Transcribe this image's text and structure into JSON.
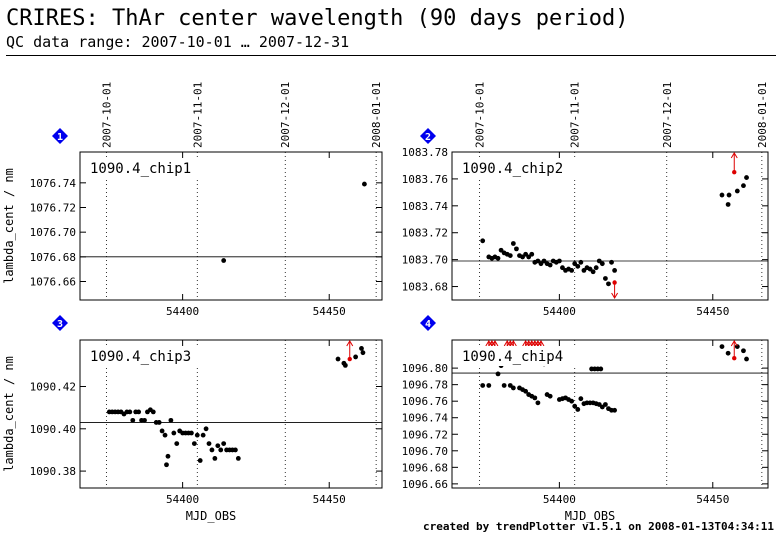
{
  "header": {
    "title": "CRIRES: ThAr center wavelength (90 days period)",
    "subtitle": "QC data range: 2007-10-01 … 2007-12-31"
  },
  "footer": "created by trendPlotter v1.5.1 on 2008-01-13T04:34:11",
  "colors": {
    "points": "#000000",
    "outlier": "#dd0000",
    "badge": "#0000ee",
    "reference_line": "#000000"
  },
  "chart_data": [
    {
      "type": "scatter",
      "badge": "1",
      "label": "1090.4_chip1",
      "ylabel": "lambda_cent / nm",
      "xlabel": "",
      "xlim": [
        54365,
        54468
      ],
      "ylim": [
        1076.645,
        1076.765
      ],
      "ytick_values": [
        1076.66,
        1076.68,
        1076.7,
        1076.72,
        1076.74
      ],
      "ytick_labels": [
        "1076.66",
        "1076.68",
        "1076.70",
        "1076.72",
        "1076.74"
      ],
      "xtick_values": [
        54400,
        54450
      ],
      "xtick_labels": [
        "54400",
        "54450"
      ],
      "date_values": [
        54374,
        54405,
        54435,
        54466
      ],
      "date_labels": [
        "2007-10-01",
        "2007-11-01",
        "2007-12-01",
        "2008-01-01"
      ],
      "reference": 1076.68,
      "points": [
        [
          54414,
          1076.677
        ],
        [
          54462,
          1076.739
        ]
      ],
      "outliers_up": [],
      "outliers_down": []
    },
    {
      "type": "scatter",
      "badge": "2",
      "label": "1090.4_chip2",
      "ylabel": "",
      "xlabel": "",
      "xlim": [
        54365,
        54468
      ],
      "ylim": [
        1083.67,
        1083.78
      ],
      "ytick_values": [
        1083.68,
        1083.7,
        1083.72,
        1083.74,
        1083.76,
        1083.78
      ],
      "ytick_labels": [
        "1083.68",
        "1083.70",
        "1083.72",
        "1083.74",
        "1083.76",
        "1083.78"
      ],
      "xtick_values": [
        54400,
        54450
      ],
      "xtick_labels": [
        "54400",
        "54450"
      ],
      "date_values": [
        54374,
        54405,
        54435,
        54466
      ],
      "date_labels": [
        "2007-10-01",
        "2007-11-01",
        "2007-12-01",
        "2008-01-01"
      ],
      "reference": 1083.699,
      "points": [
        [
          54375,
          1083.714
        ],
        [
          54377,
          1083.702
        ],
        [
          54378,
          1083.701
        ],
        [
          54379,
          1083.702
        ],
        [
          54380,
          1083.701
        ],
        [
          54381,
          1083.707
        ],
        [
          54382,
          1083.705
        ],
        [
          54383,
          1083.704
        ],
        [
          54384,
          1083.703
        ],
        [
          54385,
          1083.712
        ],
        [
          54386,
          1083.708
        ],
        [
          54387,
          1083.703
        ],
        [
          54388,
          1083.702
        ],
        [
          54389,
          1083.704
        ],
        [
          54390,
          1083.702
        ],
        [
          54391,
          1083.704
        ],
        [
          54392,
          1083.698
        ],
        [
          54393,
          1083.699
        ],
        [
          54394,
          1083.697
        ],
        [
          54395,
          1083.699
        ],
        [
          54396,
          1083.697
        ],
        [
          54397,
          1083.696
        ],
        [
          54398,
          1083.699
        ],
        [
          54399,
          1083.698
        ],
        [
          54400,
          1083.699
        ],
        [
          54401,
          1083.694
        ],
        [
          54402,
          1083.692
        ],
        [
          54403,
          1083.693
        ],
        [
          54404,
          1083.692
        ],
        [
          54405,
          1083.697
        ],
        [
          54406,
          1083.695
        ],
        [
          54407,
          1083.698
        ],
        [
          54408,
          1083.692
        ],
        [
          54409,
          1083.694
        ],
        [
          54410,
          1083.693
        ],
        [
          54411,
          1083.691
        ],
        [
          54412,
          1083.694
        ],
        [
          54413,
          1083.699
        ],
        [
          54414,
          1083.697
        ],
        [
          54415,
          1083.686
        ],
        [
          54416,
          1083.682
        ],
        [
          54417,
          1083.698
        ],
        [
          54418,
          1083.692
        ],
        [
          54453,
          1083.748
        ],
        [
          54455,
          1083.741
        ],
        [
          54455.3,
          1083.748
        ],
        [
          54458,
          1083.751
        ],
        [
          54460,
          1083.755
        ],
        [
          54461,
          1083.761
        ]
      ],
      "outliers_up": [
        [
          54457,
          1083.765
        ]
      ],
      "outliers_down": [
        [
          54418,
          1083.683
        ]
      ]
    },
    {
      "type": "scatter",
      "badge": "3",
      "label": "1090.4_chip3",
      "ylabel": "lambda_cent / nm",
      "xlabel": "MJD_OBS",
      "xlim": [
        54365,
        54468
      ],
      "ylim": [
        1090.372,
        1090.442
      ],
      "ytick_values": [
        1090.38,
        1090.4,
        1090.42
      ],
      "ytick_labels": [
        "1090.38",
        "1090.40",
        "1090.42"
      ],
      "xtick_values": [
        54400,
        54450
      ],
      "xtick_labels": [
        "54400",
        "54450"
      ],
      "date_values": [
        54374,
        54405,
        54435,
        54466
      ],
      "date_labels": [],
      "reference": 1090.403,
      "points": [
        [
          54375,
          1090.408
        ],
        [
          54376,
          1090.408
        ],
        [
          54377,
          1090.408
        ],
        [
          54378,
          1090.408
        ],
        [
          54379,
          1090.408
        ],
        [
          54380,
          1090.407
        ],
        [
          54381,
          1090.408
        ],
        [
          54382,
          1090.408
        ],
        [
          54383,
          1090.404
        ],
        [
          54384,
          1090.408
        ],
        [
          54385,
          1090.408
        ],
        [
          54386,
          1090.404
        ],
        [
          54387,
          1090.404
        ],
        [
          54388,
          1090.408
        ],
        [
          54389,
          1090.409
        ],
        [
          54390,
          1090.408
        ],
        [
          54391,
          1090.403
        ],
        [
          54392,
          1090.403
        ],
        [
          54393,
          1090.399
        ],
        [
          54394,
          1090.397
        ],
        [
          54394.5,
          1090.383
        ],
        [
          54395,
          1090.387
        ],
        [
          54396,
          1090.404
        ],
        [
          54397,
          1090.398
        ],
        [
          54398,
          1090.393
        ],
        [
          54399,
          1090.399
        ],
        [
          54400,
          1090.398
        ],
        [
          54401,
          1090.398
        ],
        [
          54402,
          1090.398
        ],
        [
          54403,
          1090.398
        ],
        [
          54404,
          1090.393
        ],
        [
          54405,
          1090.397
        ],
        [
          54406,
          1090.385
        ],
        [
          54407,
          1090.397
        ],
        [
          54408,
          1090.4
        ],
        [
          54409,
          1090.393
        ],
        [
          54410,
          1090.39
        ],
        [
          54411,
          1090.386
        ],
        [
          54412,
          1090.392
        ],
        [
          54413,
          1090.39
        ],
        [
          54414,
          1090.393
        ],
        [
          54415,
          1090.39
        ],
        [
          54416,
          1090.39
        ],
        [
          54417,
          1090.39
        ],
        [
          54418,
          1090.39
        ],
        [
          54419,
          1090.386
        ],
        [
          54453,
          1090.433
        ],
        [
          54455,
          1090.431
        ],
        [
          54455.5,
          1090.43
        ],
        [
          54459,
          1090.434
        ],
        [
          54461,
          1090.438
        ],
        [
          54461.5,
          1090.436
        ]
      ],
      "outliers_up": [
        [
          54457,
          1090.433
        ]
      ],
      "outliers_down": []
    },
    {
      "type": "scatter",
      "badge": "4",
      "label": "1090.4_chip4",
      "ylabel": "",
      "xlabel": "MJD_OBS",
      "xlim": [
        54365,
        54468
      ],
      "ylim": [
        1096.655,
        1096.834
      ],
      "ytick_values": [
        1096.66,
        1096.68,
        1096.7,
        1096.72,
        1096.74,
        1096.76,
        1096.78,
        1096.8
      ],
      "ytick_labels": [
        "1096.66",
        "1096.68",
        "1096.70",
        "1096.72",
        "1096.74",
        "1096.76",
        "1096.78",
        "1096.80"
      ],
      "xtick_values": [
        54400,
        54450
      ],
      "xtick_labels": [
        "54400",
        "54450"
      ],
      "date_values": [
        54374,
        54405,
        54435,
        54466
      ],
      "date_labels": [],
      "reference": 1096.794,
      "points": [
        [
          54375,
          1096.779
        ],
        [
          54377,
          1096.779
        ],
        [
          54380,
          1096.793
        ],
        [
          54381,
          1096.803
        ],
        [
          54382,
          1096.779
        ],
        [
          54384,
          1096.779
        ],
        [
          54385,
          1096.776
        ],
        [
          54387,
          1096.776
        ],
        [
          54388,
          1096.774
        ],
        [
          54389,
          1096.772
        ],
        [
          54390,
          1096.768
        ],
        [
          54391,
          1096.766
        ],
        [
          54392,
          1096.764
        ],
        [
          54393,
          1096.758
        ],
        [
          54395,
          1096.805
        ],
        [
          54396,
          1096.768
        ],
        [
          54397,
          1096.766
        ],
        [
          54400,
          1096.762
        ],
        [
          54401,
          1096.763
        ],
        [
          54402,
          1096.764
        ],
        [
          54403,
          1096.762
        ],
        [
          54404,
          1096.76
        ],
        [
          54405,
          1096.754
        ],
        [
          54406,
          1096.75
        ],
        [
          54407,
          1096.763
        ],
        [
          54408,
          1096.757
        ],
        [
          54409,
          1096.758
        ],
        [
          54410,
          1096.758
        ],
        [
          54411,
          1096.758
        ],
        [
          54412,
          1096.757
        ],
        [
          54413,
          1096.756
        ],
        [
          54414,
          1096.753
        ],
        [
          54415,
          1096.756
        ],
        [
          54416,
          1096.751
        ],
        [
          54417,
          1096.749
        ],
        [
          54418,
          1096.749
        ],
        [
          54410.5,
          1096.799
        ],
        [
          54411.5,
          1096.799
        ],
        [
          54412.5,
          1096.799
        ],
        [
          54413.5,
          1096.799
        ],
        [
          54453,
          1096.826
        ],
        [
          54455,
          1096.818
        ],
        [
          54458,
          1096.826
        ],
        [
          54460,
          1096.821
        ],
        [
          54461,
          1096.811
        ]
      ],
      "outliers_up": [
        [
          54377,
          1096.812
        ],
        [
          54378,
          1096.812
        ],
        [
          54379,
          1096.812
        ],
        [
          54383,
          1096.812
        ],
        [
          54384,
          1096.812
        ],
        [
          54385,
          1096.812
        ],
        [
          54389,
          1096.812
        ],
        [
          54390,
          1096.812
        ],
        [
          54391,
          1096.812
        ],
        [
          54392,
          1096.812
        ],
        [
          54393,
          1096.812
        ],
        [
          54394,
          1096.812
        ],
        [
          54457,
          1096.812
        ]
      ],
      "outliers_down": []
    }
  ]
}
